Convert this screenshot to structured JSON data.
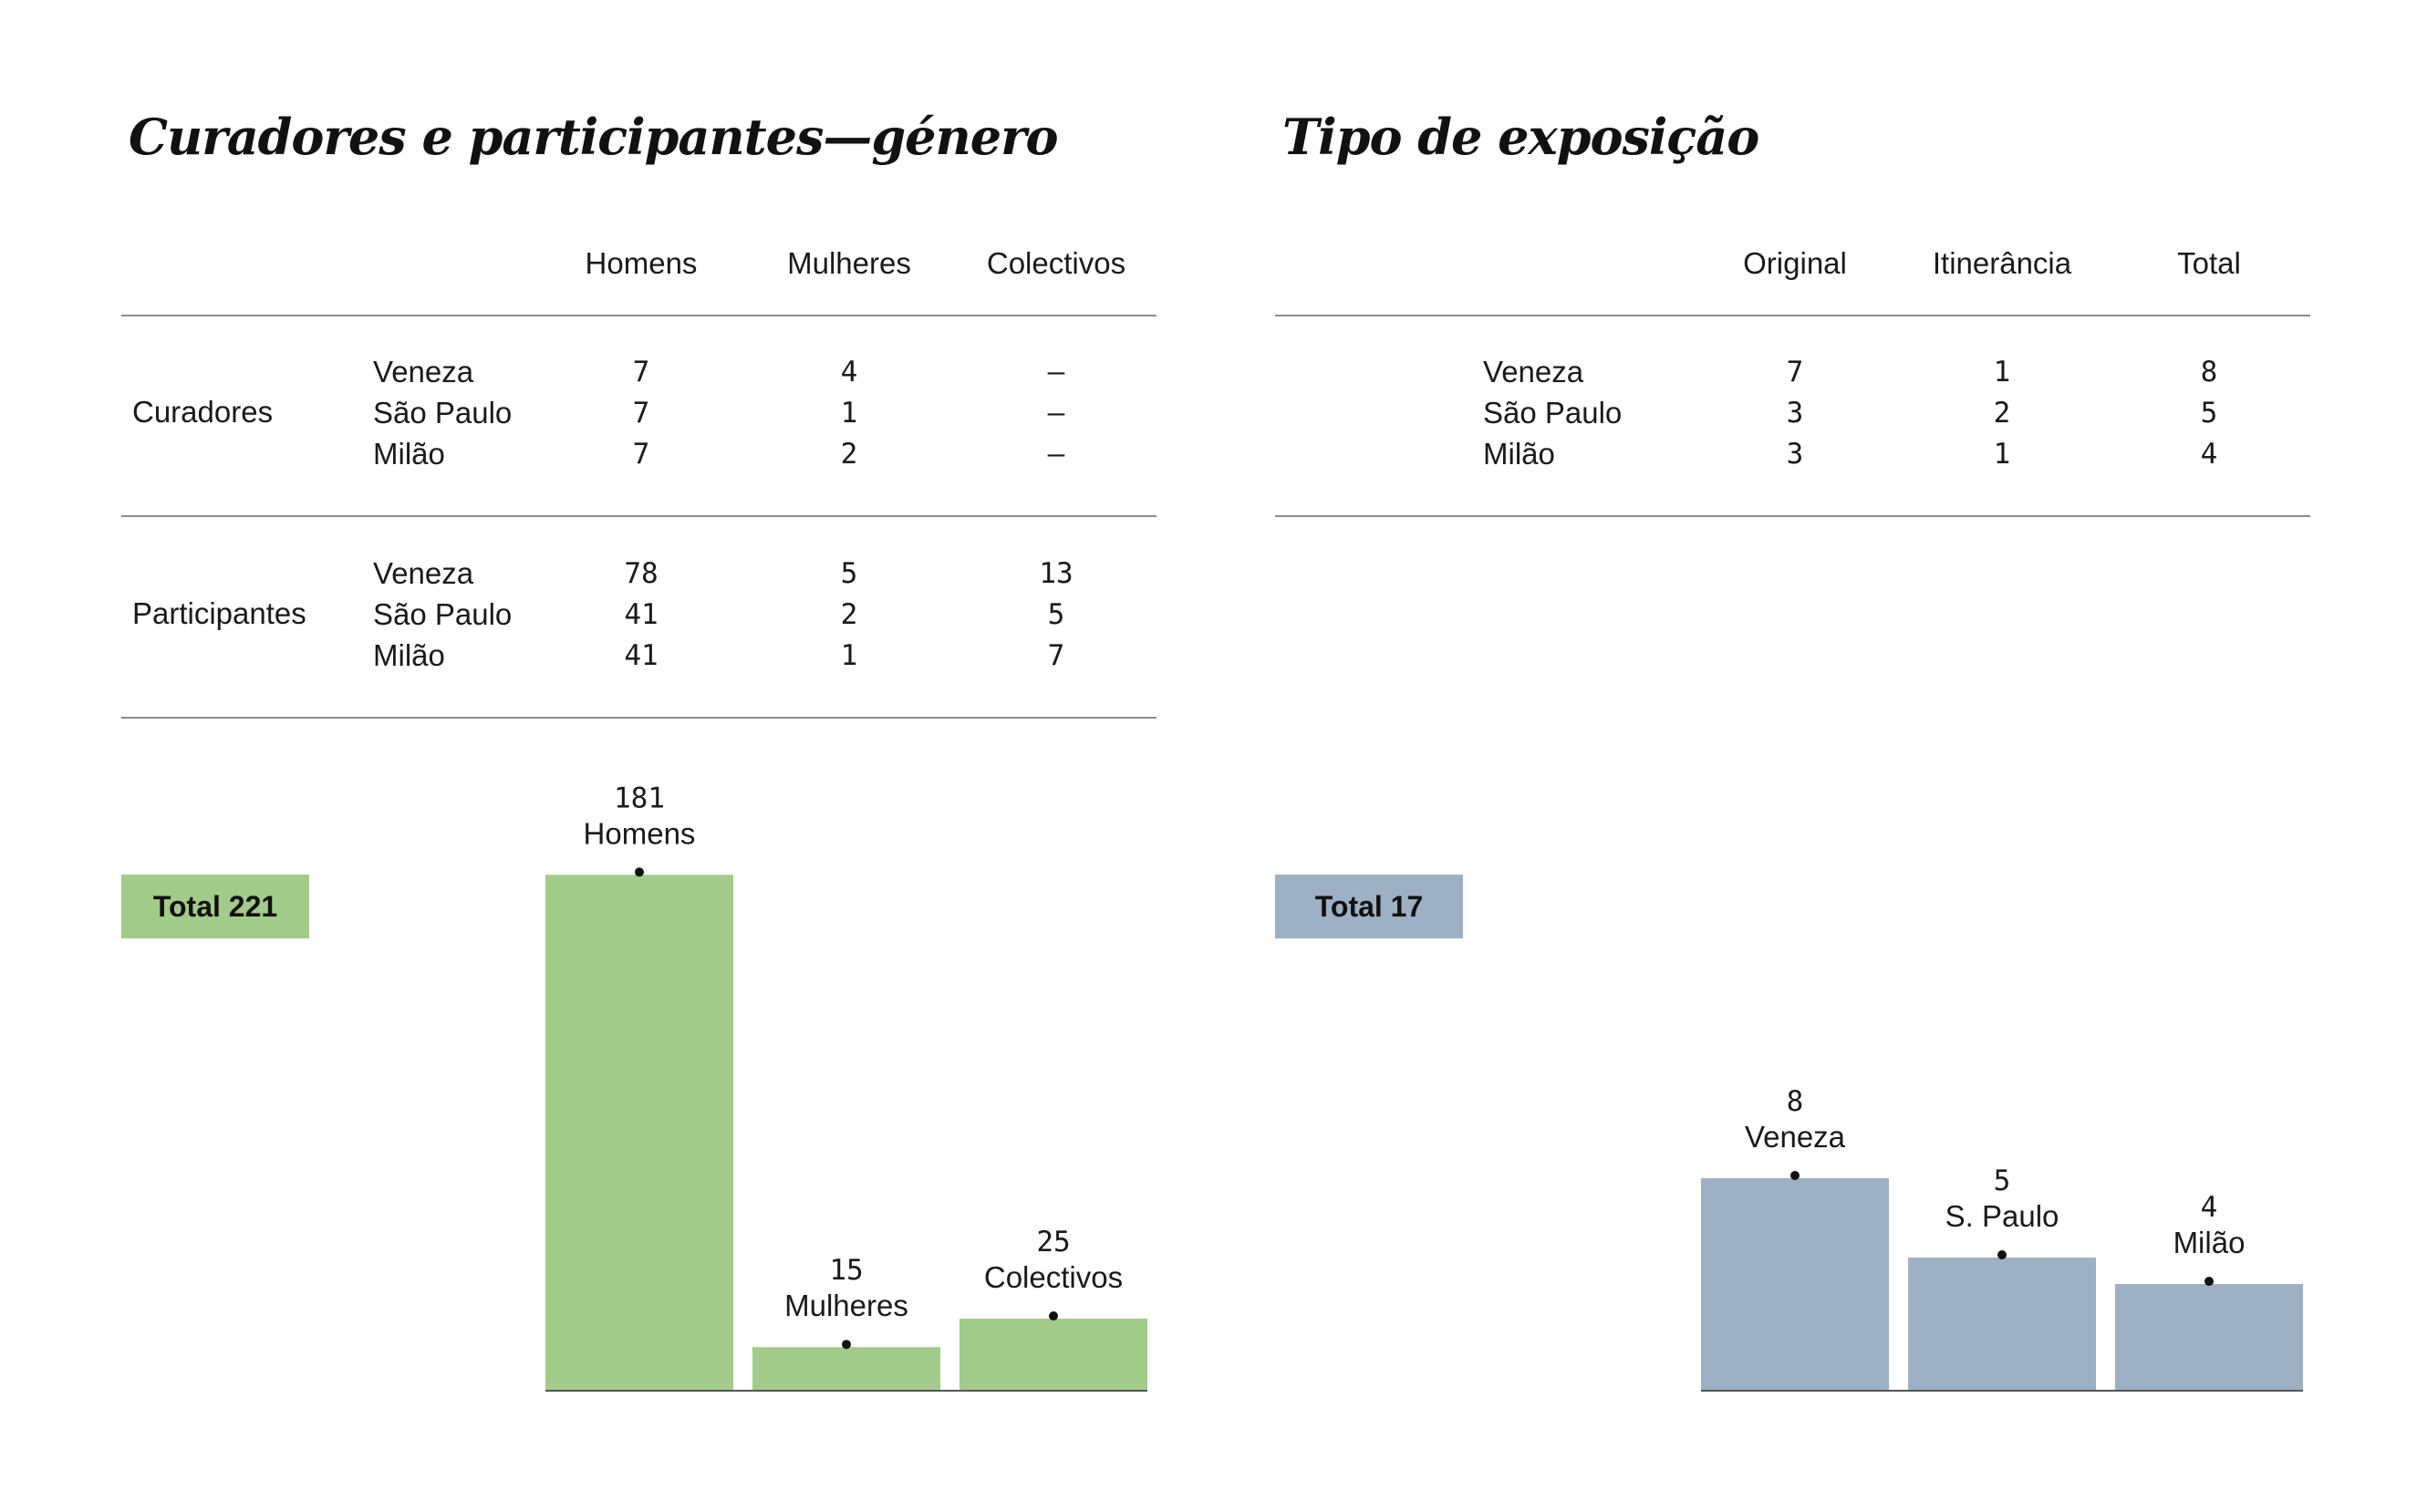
{
  "left": {
    "title": "Curadores e participantes—género",
    "columns": [
      "Homens",
      "Mulheres",
      "Colectivos"
    ],
    "groups": [
      {
        "label": "Curadores",
        "rows": [
          {
            "city": "Veneza",
            "values": [
              "7",
              "4",
              "—"
            ]
          },
          {
            "city": "São Paulo",
            "values": [
              "7",
              "1",
              "—"
            ]
          },
          {
            "city": "Milão",
            "values": [
              "7",
              "2",
              "—"
            ]
          }
        ]
      },
      {
        "label": "Participantes",
        "rows": [
          {
            "city": "Veneza",
            "values": [
              "78",
              "5",
              "13"
            ]
          },
          {
            "city": "São Paulo",
            "values": [
              "41",
              "2",
              "5"
            ]
          },
          {
            "city": "Milão",
            "values": [
              "41",
              "1",
              "7"
            ]
          }
        ]
      }
    ],
    "total_badge": "Total 221",
    "bar_color": "#a3cb8a"
  },
  "right": {
    "title": "Tipo de exposição",
    "columns": [
      "Original",
      "Itinerância",
      "Total"
    ],
    "rows": [
      {
        "city": "Veneza",
        "values": [
          "7",
          "1",
          "8"
        ]
      },
      {
        "city": "São Paulo",
        "values": [
          "3",
          "2",
          "5"
        ]
      },
      {
        "city": "Milão",
        "values": [
          "3",
          "1",
          "4"
        ]
      }
    ],
    "total_badge": "Total 17",
    "bar_color": "#9db0c4"
  },
  "chart_data": [
    {
      "type": "bar",
      "categories": [
        "Homens",
        "Mulheres",
        "Colectivos"
      ],
      "values": [
        181,
        15,
        25
      ]
    },
    {
      "type": "bar",
      "categories": [
        "Veneza",
        "S. Paulo",
        "Milão"
      ],
      "values": [
        8,
        5,
        4
      ]
    }
  ]
}
